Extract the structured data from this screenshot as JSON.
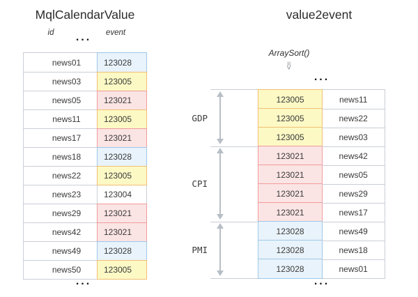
{
  "left": {
    "title": "MqlCalendarValue",
    "col_headers": [
      "id",
      "event"
    ],
    "ellipsis_top": "...",
    "ellipsis_bottom": "...",
    "rows": [
      {
        "id": "news01",
        "event": "123028",
        "color": "blue"
      },
      {
        "id": "news03",
        "event": "123005",
        "color": "yellow"
      },
      {
        "id": "news05",
        "event": "123021",
        "color": "red"
      },
      {
        "id": "news11",
        "event": "123005",
        "color": "yellow"
      },
      {
        "id": "news17",
        "event": "123021",
        "color": "red"
      },
      {
        "id": "news18",
        "event": "123028",
        "color": "blue"
      },
      {
        "id": "news22",
        "event": "123005",
        "color": "yellow"
      },
      {
        "id": "news23",
        "event": "123004",
        "color": "none"
      },
      {
        "id": "news29",
        "event": "123021",
        "color": "red"
      },
      {
        "id": "news42",
        "event": "123021",
        "color": "red"
      },
      {
        "id": "news49",
        "event": "123028",
        "color": "blue"
      },
      {
        "id": "news50",
        "event": "123005",
        "color": "yellow"
      }
    ]
  },
  "right": {
    "title": "value2event",
    "function_label": "ArraySort()",
    "sort_symbol": "=>",
    "ellipsis_top": "...",
    "ellipsis_bottom": "...",
    "groups": [
      {
        "label": "GDP",
        "rows": [
          {
            "event": "123005",
            "id": "news11",
            "color": "yellow"
          },
          {
            "event": "123005",
            "id": "news22",
            "color": "yellow"
          },
          {
            "event": "123005",
            "id": "news03",
            "color": "yellow"
          }
        ]
      },
      {
        "label": "CPI",
        "rows": [
          {
            "event": "123021",
            "id": "news42",
            "color": "red"
          },
          {
            "event": "123021",
            "id": "news05",
            "color": "red"
          },
          {
            "event": "123021",
            "id": "news29",
            "color": "red"
          },
          {
            "event": "123021",
            "id": "news17",
            "color": "red"
          }
        ]
      },
      {
        "label": "PMI",
        "rows": [
          {
            "event": "123028",
            "id": "news49",
            "color": "blue"
          },
          {
            "event": "123028",
            "id": "news18",
            "color": "blue"
          },
          {
            "event": "123028",
            "id": "news01",
            "color": "blue"
          }
        ]
      }
    ]
  },
  "colors": {
    "yellow_bg": "#fcf9c5",
    "yellow_border": "#f2be73",
    "red_bg": "#fbe4e4",
    "red_border": "#f19b9b",
    "blue_bg": "#e9f3fb",
    "blue_border": "#9ec7e8",
    "grid": "#c9ced5",
    "arrow": "#b7bec5",
    "text": "#3a3a3a",
    "title_text": "#2b2b2b"
  }
}
